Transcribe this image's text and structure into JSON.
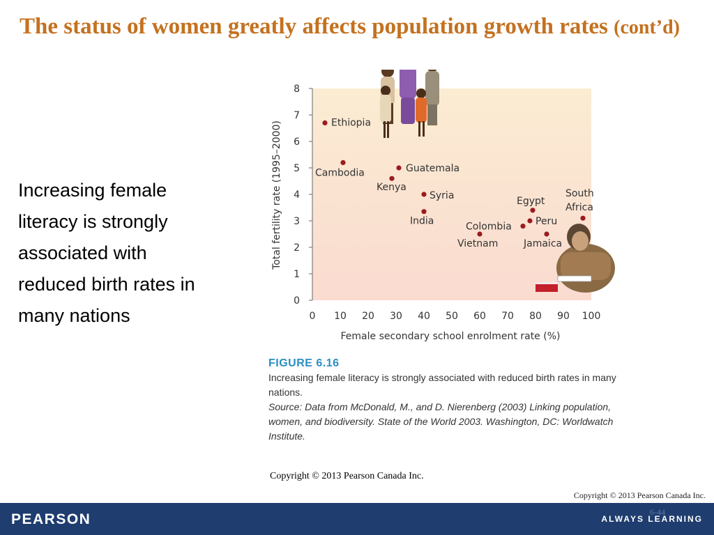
{
  "slide": {
    "title": "The status of women greatly affects population growth rates",
    "title_suffix": "(cont’d)",
    "bullet": "Increasing female literacy is strongly associated with reduced birth rates in many nations",
    "slide_number": "6-44",
    "footer_copyright": "Copyright © 2013 Pearson Canada Inc.",
    "brand": "PEARSON",
    "tagline": "ALWAYS LEARNING"
  },
  "figure": {
    "label": "FIGURE 6.16",
    "caption": "Increasing female literacy is strongly associated with reduced birth rates in many nations.",
    "source": "Source: Data from McDonald, M., and D. Nierenberg (2003) Linking population, women, and biodiversity. State of the World 2003. Washington, DC: Worldwatch Institute.",
    "copyright": "Copyright © 2013 Pearson Canada Inc."
  },
  "chart_data": {
    "type": "scatter",
    "xlabel": "Female secondary school enrolment rate (%)",
    "ylabel": "Total fertility rate (1995–2000)",
    "xlim": [
      0,
      100
    ],
    "ylim": [
      0,
      8
    ],
    "x_ticks": [
      0,
      10,
      20,
      30,
      40,
      50,
      60,
      70,
      80,
      90,
      100
    ],
    "y_ticks": [
      0,
      1,
      2,
      3,
      4,
      5,
      6,
      7,
      8
    ],
    "grid": false,
    "marker_color": "#9b1b1f",
    "points": [
      {
        "label": "Ethiopia",
        "x": 4.5,
        "y": 6.7
      },
      {
        "label": "Cambodia",
        "x": 11,
        "y": 5.2
      },
      {
        "label": "Guatemala",
        "x": 31,
        "y": 5.0
      },
      {
        "label": "Kenya",
        "x": 28.5,
        "y": 4.6
      },
      {
        "label": "Syria",
        "x": 40,
        "y": 4.0
      },
      {
        "label": "India",
        "x": 40,
        "y": 3.35
      },
      {
        "label": "Egypt",
        "x": 79,
        "y": 3.4
      },
      {
        "label": "South Africa",
        "x": 97,
        "y": 3.1
      },
      {
        "label": "Peru",
        "x": 78,
        "y": 3.0
      },
      {
        "label": "Colombia",
        "x": 75.5,
        "y": 2.8
      },
      {
        "label": "Vietnam",
        "x": 60,
        "y": 2.5
      },
      {
        "label": "Jamaica",
        "x": 84,
        "y": 2.5
      }
    ]
  }
}
